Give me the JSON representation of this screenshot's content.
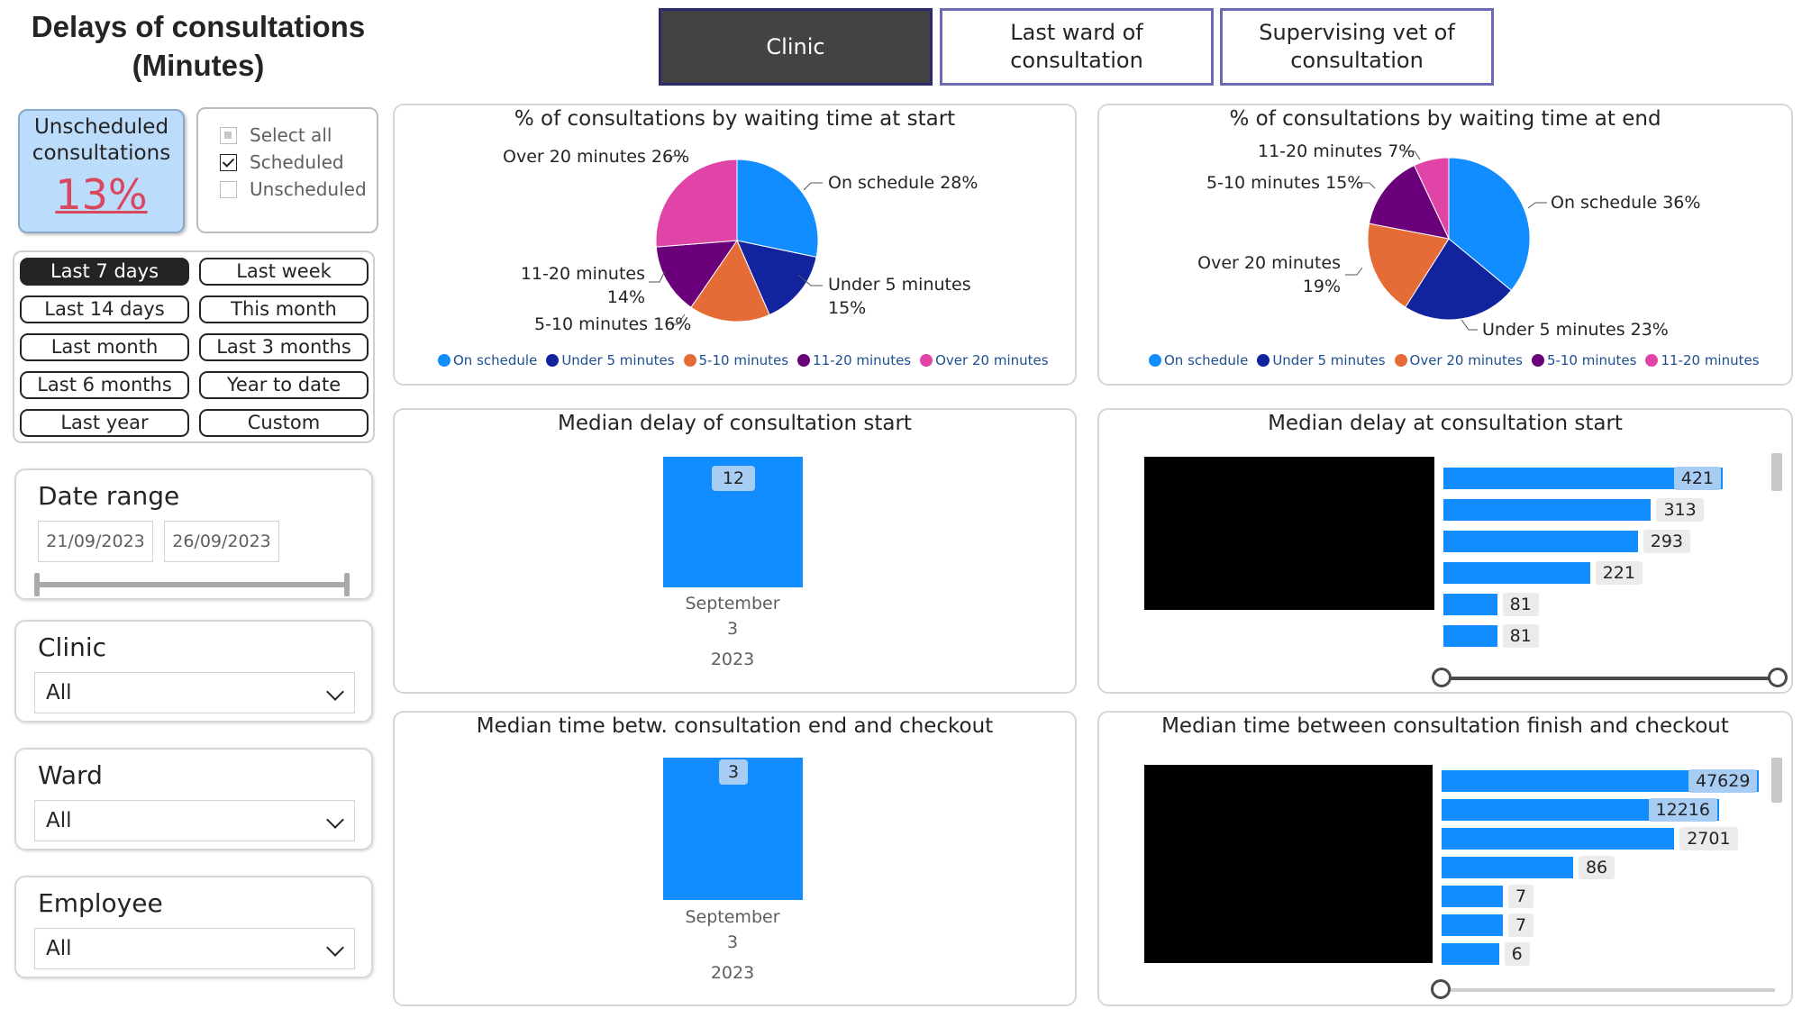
{
  "page": {
    "title": "Delays of consultations (Minutes)"
  },
  "tabs": [
    {
      "label": "Clinic",
      "active": true
    },
    {
      "label": "Last ward of consultation",
      "active": false
    },
    {
      "label": "Supervising vet of consultation",
      "active": false
    }
  ],
  "kpi": {
    "label": "Unscheduled consultations",
    "value": "13%"
  },
  "checklist": {
    "items": [
      {
        "label": "Select all",
        "state": "partial"
      },
      {
        "label": "Scheduled",
        "state": "checked"
      },
      {
        "label": "Unscheduled",
        "state": "unchecked"
      }
    ]
  },
  "presets": [
    {
      "label": "Last 7 days",
      "active": true
    },
    {
      "label": "Last week",
      "active": false
    },
    {
      "label": "Last 14 days",
      "active": false
    },
    {
      "label": "This month",
      "active": false
    },
    {
      "label": "Last month",
      "active": false
    },
    {
      "label": "Last 3 months",
      "active": false
    },
    {
      "label": "Last 6 months",
      "active": false
    },
    {
      "label": "Year to date",
      "active": false
    },
    {
      "label": "Last year",
      "active": false
    },
    {
      "label": "Custom",
      "active": false
    }
  ],
  "date_range": {
    "title": "Date range",
    "start": "21/09/2023",
    "end": "26/09/2023"
  },
  "slicers": {
    "clinic": {
      "title": "Clinic",
      "value": "All"
    },
    "ward": {
      "title": "Ward",
      "value": "All"
    },
    "employee": {
      "title": "Employee",
      "value": "All"
    }
  },
  "colors": {
    "on_schedule": "#118dff",
    "under_5": "#12239e",
    "five_ten": "#e66c37",
    "eleven_twenty": "#6b007b",
    "over_20": "#e044a7",
    "bar": "#118dff"
  },
  "chart_data": [
    {
      "type": "pie",
      "title": "% of consultations by waiting time at start",
      "slices": [
        {
          "name": "On schedule",
          "value": 28,
          "label": "On schedule 28%",
          "color": "#118dff"
        },
        {
          "name": "Under 5 minutes",
          "value": 15,
          "label": "Under 5 minutes 15%",
          "color": "#12239e"
        },
        {
          "name": "5-10 minutes",
          "value": 16,
          "label": "5-10 minutes 16%",
          "color": "#e66c37"
        },
        {
          "name": "11-20 minutes",
          "value": 14,
          "label": "11-20 minutes 14%",
          "color": "#6b007b"
        },
        {
          "name": "Over 20 minutes",
          "value": 26,
          "label": "Over 20 minutes 26%",
          "color": "#e044a7"
        }
      ],
      "legend": [
        "On schedule",
        "Under 5 minutes",
        "5-10 minutes",
        "11-20 minutes",
        "Over 20 minutes"
      ],
      "legend_position": "bottom"
    },
    {
      "type": "pie",
      "title": "% of consultations by waiting time at end",
      "slices": [
        {
          "name": "On schedule",
          "value": 36,
          "label": "On schedule 36%",
          "color": "#118dff"
        },
        {
          "name": "Under 5 minutes",
          "value": 23,
          "label": "Under 5 minutes 23%",
          "color": "#12239e"
        },
        {
          "name": "Over 20 minutes",
          "value": 19,
          "label": "Over 20 minutes 19%",
          "color": "#e66c37"
        },
        {
          "name": "5-10 minutes",
          "value": 15,
          "label": "5-10 minutes 15%",
          "color": "#6b007b"
        },
        {
          "name": "11-20 minutes",
          "value": 7,
          "label": "11-20 minutes 7%",
          "color": "#e044a7"
        }
      ],
      "legend": [
        "On schedule",
        "Under 5 minutes",
        "Over 20 minutes",
        "5-10 minutes",
        "11-20 minutes"
      ],
      "legend_position": "bottom"
    },
    {
      "type": "bar",
      "title": "Median delay of consultation start",
      "categories": [
        "September"
      ],
      "category_lines": [
        "September",
        "3",
        "2023"
      ],
      "values": [
        12
      ]
    },
    {
      "type": "bar",
      "orientation": "horizontal",
      "title": "Median delay at consultation start",
      "values": [
        421,
        313,
        293,
        221,
        81,
        81
      ]
    },
    {
      "type": "bar",
      "title": "Median time betw. consultation end and checkout",
      "categories": [
        "September"
      ],
      "category_lines": [
        "September",
        "3",
        "2023"
      ],
      "values": [
        3
      ]
    },
    {
      "type": "bar",
      "orientation": "horizontal",
      "title": "Median time between consultation finish and checkout",
      "values": [
        47629,
        12216,
        2701,
        86,
        7,
        7,
        6
      ]
    }
  ]
}
